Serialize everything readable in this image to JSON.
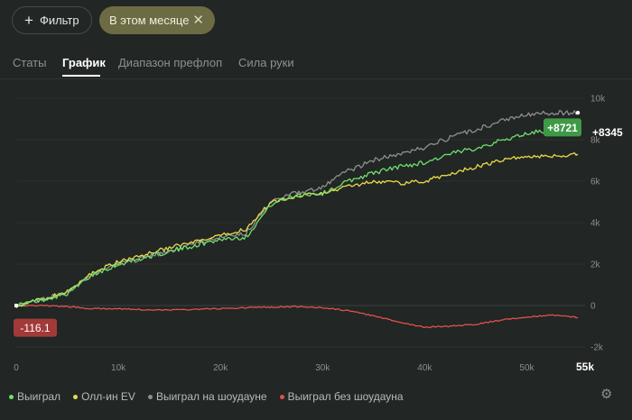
{
  "filters": {
    "filter_label": "Фильтр",
    "filter_icon": "plus-icon",
    "active_chip_label": "В этом месяце",
    "active_chip_icon": "close-icon"
  },
  "tabs": [
    {
      "label": "Статы",
      "active": false
    },
    {
      "label": "График",
      "active": true
    },
    {
      "label": "Диапазон префлоп",
      "active": false
    },
    {
      "label": "Сила руки",
      "active": false
    }
  ],
  "chart_data": {
    "type": "line",
    "xlim": [
      0,
      55000
    ],
    "ylim": [
      -2000,
      10000
    ],
    "x_ticks": [
      {
        "value": 0,
        "label": "0"
      },
      {
        "value": 10000,
        "label": "10k"
      },
      {
        "value": 20000,
        "label": "20k"
      },
      {
        "value": 30000,
        "label": "30k"
      },
      {
        "value": 40000,
        "label": "40k"
      },
      {
        "value": 50000,
        "label": "50k"
      },
      {
        "value": 55000,
        "label": "55k"
      }
    ],
    "y_ticks": [
      {
        "value": 10000,
        "label": "10k"
      },
      {
        "value": 8000,
        "label": "8k"
      },
      {
        "value": 6000,
        "label": "6k"
      },
      {
        "value": 4000,
        "label": "4k"
      },
      {
        "value": 2000,
        "label": "2k"
      },
      {
        "value": 0,
        "label": "0"
      },
      {
        "value": -2000,
        "label": "-2k"
      }
    ],
    "grid": true,
    "legend_position": "bottom-left",
    "series": [
      {
        "name": "Выиграл",
        "color": "#6fdf6f",
        "x": [
          0,
          2500,
          5000,
          7500,
          10000,
          12500,
          15000,
          17500,
          20000,
          22500,
          25000,
          27500,
          30000,
          32500,
          35000,
          37500,
          40000,
          42500,
          45000,
          47500,
          50000,
          52500,
          55000
        ],
        "y": [
          0,
          280,
          580,
          1500,
          2000,
          2300,
          2600,
          2900,
          3200,
          3300,
          4900,
          5350,
          5400,
          6000,
          6400,
          6700,
          6900,
          7300,
          7600,
          7950,
          8300,
          8500,
          8721
        ]
      },
      {
        "name": "Олл-ин EV",
        "color": "#eadb4a",
        "x": [
          0,
          2500,
          5000,
          7500,
          10000,
          12500,
          15000,
          17500,
          20000,
          22500,
          25000,
          27500,
          30000,
          32500,
          35000,
          37500,
          40000,
          42500,
          45000,
          47500,
          50000,
          52500,
          55000
        ],
        "y": [
          0,
          300,
          650,
          1600,
          2100,
          2450,
          2800,
          3050,
          3350,
          3700,
          5000,
          5300,
          5400,
          5750,
          6000,
          5900,
          6000,
          6350,
          6700,
          7000,
          7200,
          7200,
          7300
        ]
      },
      {
        "name": "Выиграл на шоудауне",
        "color": "#8e908e",
        "x": [
          0,
          2500,
          5000,
          7500,
          10000,
          12500,
          15000,
          17500,
          20000,
          22500,
          25000,
          27500,
          30000,
          32500,
          35000,
          37500,
          40000,
          42500,
          45000,
          47500,
          50000,
          52500,
          55000
        ],
        "y": [
          0,
          300,
          600,
          1500,
          2000,
          2300,
          2600,
          3000,
          3300,
          3500,
          5000,
          5450,
          5700,
          6500,
          7000,
          7300,
          7600,
          8100,
          8500,
          8900,
          9200,
          9300,
          9300
        ]
      },
      {
        "name": "Выиграл без шоудауна",
        "color": "#e05050",
        "x": [
          0,
          2500,
          5000,
          7500,
          10000,
          12500,
          15000,
          17500,
          20000,
          22500,
          25000,
          27500,
          30000,
          32500,
          35000,
          37500,
          40000,
          42500,
          45000,
          47500,
          50000,
          52500,
          55000
        ],
        "y": [
          0,
          0,
          -50,
          -150,
          -150,
          -200,
          -220,
          -180,
          -150,
          -100,
          -80,
          -50,
          -100,
          -250,
          -500,
          -800,
          -1050,
          -1000,
          -900,
          -700,
          -550,
          -450,
          -580
        ]
      }
    ],
    "end_labels": [
      {
        "text": "+8345",
        "style": "plain",
        "value": 8345
      },
      {
        "text": "+8721",
        "style": "badge",
        "color": "#3f9a47",
        "value": 8721
      },
      {
        "text": "-116.1",
        "style": "badge",
        "color": "#a33a3a",
        "value": -116.1
      }
    ]
  },
  "settings_icon": "gear-icon"
}
